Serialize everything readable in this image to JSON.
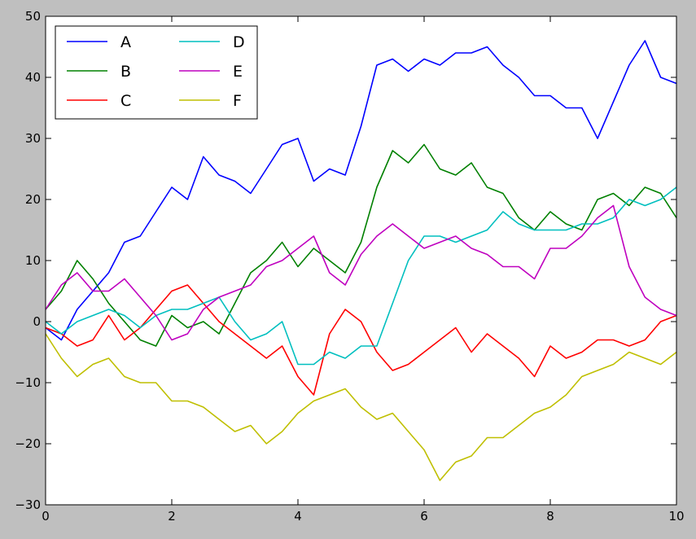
{
  "chart_data": {
    "type": "line",
    "title": "",
    "xlabel": "",
    "ylabel": "",
    "xlim": [
      0,
      10
    ],
    "ylim": [
      -30,
      50
    ],
    "xticks": [
      0,
      2,
      4,
      6,
      8,
      10
    ],
    "yticks": [
      -30,
      -20,
      -10,
      0,
      10,
      20,
      30,
      40,
      50
    ],
    "grid": false,
    "legend": {
      "placement": "top-left",
      "columns": 2
    },
    "x": [
      0,
      0.25,
      0.5,
      0.75,
      1,
      1.25,
      1.5,
      1.75,
      2,
      2.25,
      2.5,
      2.75,
      3,
      3.25,
      3.5,
      3.75,
      4,
      4.25,
      4.5,
      4.75,
      5,
      5.25,
      5.5,
      5.75,
      6,
      6.25,
      6.5,
      6.75,
      7,
      7.25,
      7.5,
      7.75,
      8,
      8.25,
      8.5,
      8.75,
      9,
      9.25,
      9.5,
      9.75,
      10
    ],
    "series": [
      {
        "name": "A",
        "color": "#0000ff",
        "values": [
          -1,
          -3,
          2,
          5,
          8,
          13,
          14,
          18,
          22,
          20,
          27,
          24,
          23,
          21,
          25,
          29,
          30,
          23,
          25,
          24,
          32,
          42,
          43,
          41,
          43,
          42,
          44,
          44,
          45,
          42,
          40,
          37,
          37,
          35,
          35,
          30,
          36,
          42,
          46,
          40,
          39
        ]
      },
      {
        "name": "B",
        "color": "#008000",
        "values": [
          2,
          5,
          10,
          7,
          3,
          0,
          -3,
          -4,
          1,
          -1,
          0,
          -2,
          3,
          8,
          10,
          13,
          9,
          12,
          10,
          8,
          13,
          22,
          28,
          26,
          29,
          25,
          24,
          26,
          22,
          21,
          17,
          15,
          18,
          16,
          15,
          20,
          21,
          19,
          22,
          21,
          17
        ]
      },
      {
        "name": "C",
        "color": "#ff0000",
        "values": [
          -1,
          -2,
          -4,
          -3,
          1,
          -3,
          -1,
          2,
          5,
          6,
          3,
          0,
          -2,
          -4,
          -6,
          -4,
          -9,
          -12,
          -2,
          2,
          0,
          -5,
          -8,
          -7,
          -5,
          -3,
          -1,
          -5,
          -2,
          -4,
          -6,
          -9,
          -4,
          -6,
          -5,
          -3,
          -3,
          -4,
          -3,
          0,
          1
        ]
      },
      {
        "name": "D",
        "color": "#00bfbf",
        "values": [
          0,
          -2,
          0,
          1,
          2,
          1,
          -1,
          1,
          2,
          2,
          3,
          4,
          0,
          -3,
          -2,
          0,
          -7,
          -7,
          -5,
          -6,
          -4,
          -4,
          3,
          10,
          14,
          14,
          13,
          14,
          15,
          18,
          16,
          15,
          15,
          15,
          16,
          16,
          17,
          20,
          19,
          20,
          22
        ]
      },
      {
        "name": "E",
        "color": "#bf00bf",
        "values": [
          2,
          6,
          8,
          5,
          5,
          7,
          4,
          1,
          -3,
          -2,
          2,
          4,
          5,
          6,
          9,
          10,
          12,
          14,
          8,
          6,
          11,
          14,
          16,
          14,
          12,
          13,
          14,
          12,
          11,
          9,
          9,
          7,
          12,
          12,
          14,
          17,
          19,
          9,
          4,
          2,
          1
        ]
      },
      {
        "name": "F",
        "color": "#bfbf00",
        "values": [
          -2,
          -6,
          -9,
          -7,
          -6,
          -9,
          -10,
          -10,
          -13,
          -13,
          -14,
          -16,
          -18,
          -17,
          -20,
          -18,
          -15,
          -13,
          -12,
          -11,
          -14,
          -16,
          -15,
          -18,
          -21,
          -26,
          -23,
          -22,
          -19,
          -19,
          -17,
          -15,
          -14,
          -12,
          -9,
          -8,
          -7,
          -5,
          -6,
          -7,
          -5
        ]
      }
    ]
  }
}
